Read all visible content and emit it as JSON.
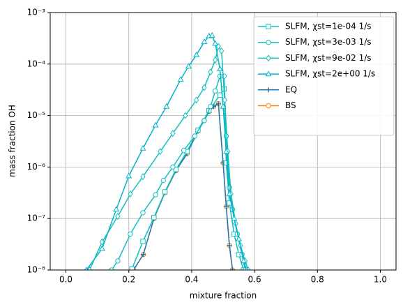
{
  "chart_data": {
    "type": "line",
    "log_y": true,
    "grid": true,
    "legend": "upper right",
    "xlabel": "mixture fraction",
    "ylabel": "mass fraction OH",
    "xlim": [
      -0.05,
      1.05
    ],
    "xticks": [
      {
        "value": 0,
        "label": "0.0"
      },
      0.2,
      0.4,
      0.6,
      0.8,
      {
        "value": 1,
        "label": "1.0"
      }
    ],
    "ylim": [
      1e-08,
      0.001
    ],
    "yticks": [
      {
        "value": 1e-08,
        "label": "10⁻⁸"
      },
      {
        "value": 1e-07,
        "label": "10⁻⁷"
      },
      {
        "value": 1e-06,
        "label": "10⁻⁶"
      },
      {
        "value": 1e-05,
        "label": "10⁻⁵"
      },
      {
        "value": 0.0001,
        "label": "10⁻⁴"
      },
      {
        "value": 0.001,
        "label": "10⁻³"
      }
    ],
    "series": [
      {
        "name": "SLFM, χst=1e-04 1/s",
        "color": "#12bfbf",
        "marker": "square",
        "x": [
          0.21,
          0.245,
          0.28,
          0.315,
          0.35,
          0.385,
          0.42,
          0.455,
          0.49,
          0.503,
          0.51,
          0.52,
          0.535,
          0.55,
          0.565
        ],
        "values": [
          1.05e-08,
          3.6e-08,
          1.05e-07,
          3.3e-07,
          9e-07,
          2e-06,
          5.2e-06,
          1.25e-05,
          2.5e-05,
          3.3e-05,
          1.2e-06,
          2e-07,
          5e-08,
          2e-08,
          1e-08
        ]
      },
      {
        "name": "SLFM, χst=3e-03 1/s",
        "color": "#12bfbf",
        "marker": "circle",
        "x": [
          0.145,
          0.165,
          0.205,
          0.245,
          0.285,
          0.31,
          0.34,
          0.375,
          0.41,
          0.44,
          0.46,
          0.475,
          0.49,
          0.503,
          0.51,
          0.52,
          0.53,
          0.545,
          0.56,
          0.57
        ],
        "values": [
          1e-08,
          1.5e-08,
          5e-08,
          1.3e-07,
          2.9e-07,
          5.5e-07,
          1e-06,
          2.1e-06,
          4e-06,
          8e-06,
          1.5e-05,
          3e-05,
          5.8e-05,
          5.8e-05,
          4e-06,
          4e-07,
          1.5e-07,
          5e-08,
          2e-08,
          1e-08
        ]
      },
      {
        "name": "SLFM, χst=9e-02 1/s",
        "color": "#12bfbf",
        "marker": "diamond",
        "x": [
          0.075,
          0.115,
          0.165,
          0.205,
          0.245,
          0.3,
          0.34,
          0.38,
          0.415,
          0.44,
          0.46,
          0.475,
          0.485,
          0.495,
          0.505,
          0.515,
          0.525,
          0.54,
          0.555,
          0.57,
          0.58
        ],
        "values": [
          1e-08,
          3.5e-08,
          1.1e-07,
          3e-07,
          6.5e-07,
          2e-06,
          4.5e-06,
          1e-05,
          2e-05,
          3.5e-05,
          7e-05,
          0.00012,
          0.00022,
          0.00018,
          2e-05,
          2e-06,
          3e-07,
          8e-08,
          3e-08,
          1.5e-08,
          1e-08
        ]
      },
      {
        "name": "SLFM, χst=2e+00 1/s",
        "color": "#00b5cc",
        "marker": "triangle",
        "x": [
          0.065,
          0.115,
          0.16,
          0.2,
          0.245,
          0.285,
          0.32,
          0.365,
          0.39,
          0.415,
          0.44,
          0.455,
          0.465,
          0.475,
          0.49,
          0.5,
          0.51,
          0.52,
          0.535,
          0.55,
          0.565,
          0.575
        ],
        "values": [
          1e-08,
          2.6e-08,
          1.5e-07,
          6.7e-07,
          2.3e-06,
          6.5e-06,
          1.5e-05,
          5e-05,
          9e-05,
          0.00015,
          0.00027,
          0.00035,
          0.00036,
          0.00025,
          8e-05,
          1.5e-05,
          2e-06,
          3e-07,
          1e-07,
          4e-08,
          1.5e-08,
          1e-08
        ]
      },
      {
        "name": "EQ",
        "color": "#1f77b4",
        "marker": "plus",
        "x": [
          0.215,
          0.246,
          0.28,
          0.315,
          0.35,
          0.385,
          0.42,
          0.44,
          0.455,
          0.47,
          0.485,
          0.5,
          0.51,
          0.52,
          0.53
        ],
        "values": [
          1e-08,
          2e-08,
          1e-07,
          3.2e-07,
          8.5e-07,
          1.8e-06,
          5e-06,
          8e-06,
          1.2e-05,
          1.5e-05,
          1.7e-05,
          1.2e-06,
          1.7e-07,
          3e-08,
          1e-08
        ]
      },
      {
        "name": "BS",
        "color": "#ff7f0e",
        "marker": "circle",
        "x": [
          0.215,
          0.246,
          0.28,
          0.315,
          0.35,
          0.385,
          0.42,
          0.44,
          0.455,
          0.47,
          0.485,
          0.5,
          0.51,
          0.52,
          0.53
        ],
        "values": [
          1e-08,
          2e-08,
          1e-07,
          3.2e-07,
          8.5e-07,
          1.8e-06,
          5e-06,
          8e-06,
          1.2e-05,
          1.5e-05,
          1.7e-05,
          1.2e-06,
          1.7e-07,
          3e-08,
          1e-08
        ]
      }
    ]
  }
}
